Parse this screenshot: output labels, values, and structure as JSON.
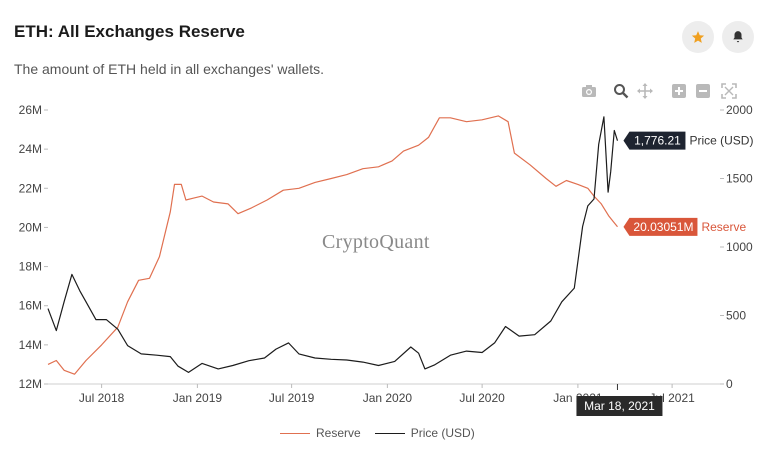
{
  "header": {
    "title": "ETH: All Exchanges Reserve",
    "subtitle": "The amount of ETH held in all exchanges' wallets.",
    "star_icon": "star-icon",
    "bell_icon": "bell-icon",
    "star_color": "#f0a020"
  },
  "toolbar": {
    "icons": [
      "camera-icon",
      "zoom-icon",
      "pan-icon",
      "zoom-in-icon",
      "zoom-out-icon",
      "reset-axes-icon"
    ]
  },
  "watermark": "CryptoQuant",
  "chart_data": {
    "type": "line",
    "x_ticks": [
      "Jul 2018",
      "Jan 2019",
      "Jul 2019",
      "Jan 2020",
      "Jul 2020",
      "Jan 2021",
      "Jul 2021"
    ],
    "y_left_ticks": [
      "12M",
      "14M",
      "16M",
      "18M",
      "20M",
      "22M",
      "24M",
      "26M"
    ],
    "y_left_range": [
      12,
      26
    ],
    "y_right_ticks": [
      "0",
      "500",
      "1000",
      "1500",
      "2000"
    ],
    "y_right_range": [
      0,
      2000
    ],
    "hover_date": "Mar 18, 2021",
    "price_label": "1,776.21",
    "price_label_suffix": "Price (USD)",
    "reserve_label": "20.03051M",
    "reserve_label_suffix": "Reserve",
    "colors": {
      "reserve": "#e07050",
      "price": "#1c1c1c",
      "price_tag": "#1e2430",
      "reserve_tag": "#d9563a"
    },
    "series": [
      {
        "name": "Reserve",
        "axis": "left",
        "points": [
          [
            "2018-03-20",
            13.0
          ],
          [
            "2018-04-05",
            13.2
          ],
          [
            "2018-04-20",
            12.7
          ],
          [
            "2018-05-10",
            12.5
          ],
          [
            "2018-06-01",
            13.2
          ],
          [
            "2018-07-01",
            14.0
          ],
          [
            "2018-08-01",
            14.9
          ],
          [
            "2018-08-20",
            16.2
          ],
          [
            "2018-09-10",
            17.3
          ],
          [
            "2018-10-01",
            17.4
          ],
          [
            "2018-10-20",
            18.5
          ],
          [
            "2018-11-10",
            20.8
          ],
          [
            "2018-11-18",
            22.2
          ],
          [
            "2018-12-01",
            22.2
          ],
          [
            "2018-12-10",
            21.4
          ],
          [
            "2018-12-25",
            21.5
          ],
          [
            "2019-01-10",
            21.6
          ],
          [
            "2019-02-01",
            21.3
          ],
          [
            "2019-03-01",
            21.2
          ],
          [
            "2019-03-20",
            20.7
          ],
          [
            "2019-04-15",
            21.0
          ],
          [
            "2019-05-15",
            21.4
          ],
          [
            "2019-06-15",
            21.9
          ],
          [
            "2019-07-15",
            22.0
          ],
          [
            "2019-08-15",
            22.3
          ],
          [
            "2019-09-15",
            22.5
          ],
          [
            "2019-10-15",
            22.7
          ],
          [
            "2019-11-15",
            23.0
          ],
          [
            "2019-12-15",
            23.1
          ],
          [
            "2020-01-10",
            23.4
          ],
          [
            "2020-02-01",
            23.9
          ],
          [
            "2020-03-01",
            24.2
          ],
          [
            "2020-03-20",
            24.6
          ],
          [
            "2020-04-10",
            25.6
          ],
          [
            "2020-05-01",
            25.6
          ],
          [
            "2020-06-01",
            25.4
          ],
          [
            "2020-07-01",
            25.5
          ],
          [
            "2020-08-01",
            25.7
          ],
          [
            "2020-08-20",
            25.4
          ],
          [
            "2020-09-01",
            23.8
          ],
          [
            "2020-10-01",
            23.2
          ],
          [
            "2020-11-01",
            22.5
          ],
          [
            "2020-11-20",
            22.1
          ],
          [
            "2020-12-10",
            22.4
          ],
          [
            "2021-01-01",
            22.2
          ],
          [
            "2021-01-20",
            22.0
          ],
          [
            "2021-02-01",
            21.6
          ],
          [
            "2021-02-15",
            21.2
          ],
          [
            "2021-03-01",
            20.6
          ],
          [
            "2021-03-10",
            20.3
          ],
          [
            "2021-03-18",
            20.0305
          ]
        ]
      },
      {
        "name": "Price (USD)",
        "axis": "right",
        "points": [
          [
            "2018-03-20",
            550
          ],
          [
            "2018-04-05",
            390
          ],
          [
            "2018-04-20",
            600
          ],
          [
            "2018-05-05",
            800
          ],
          [
            "2018-05-20",
            680
          ],
          [
            "2018-06-01",
            600
          ],
          [
            "2018-06-20",
            470
          ],
          [
            "2018-07-10",
            470
          ],
          [
            "2018-08-01",
            400
          ],
          [
            "2018-08-20",
            280
          ],
          [
            "2018-09-15",
            220
          ],
          [
            "2018-10-15",
            210
          ],
          [
            "2018-11-10",
            200
          ],
          [
            "2018-11-25",
            130
          ],
          [
            "2018-12-15",
            85
          ],
          [
            "2019-01-10",
            150
          ],
          [
            "2019-02-10",
            110
          ],
          [
            "2019-03-10",
            135
          ],
          [
            "2019-04-10",
            170
          ],
          [
            "2019-05-10",
            190
          ],
          [
            "2019-06-01",
            255
          ],
          [
            "2019-06-25",
            300
          ],
          [
            "2019-07-15",
            220
          ],
          [
            "2019-08-15",
            190
          ],
          [
            "2019-09-15",
            180
          ],
          [
            "2019-10-15",
            175
          ],
          [
            "2019-11-15",
            160
          ],
          [
            "2019-12-15",
            135
          ],
          [
            "2020-01-15",
            165
          ],
          [
            "2020-02-15",
            270
          ],
          [
            "2020-03-01",
            225
          ],
          [
            "2020-03-13",
            110
          ],
          [
            "2020-04-01",
            140
          ],
          [
            "2020-05-01",
            210
          ],
          [
            "2020-06-01",
            240
          ],
          [
            "2020-07-01",
            230
          ],
          [
            "2020-07-25",
            300
          ],
          [
            "2020-08-15",
            420
          ],
          [
            "2020-09-10",
            350
          ],
          [
            "2020-10-10",
            360
          ],
          [
            "2020-11-10",
            460
          ],
          [
            "2020-12-01",
            600
          ],
          [
            "2020-12-25",
            700
          ],
          [
            "2021-01-10",
            1150
          ],
          [
            "2021-01-20",
            1300
          ],
          [
            "2021-02-01",
            1350
          ],
          [
            "2021-02-10",
            1750
          ],
          [
            "2021-02-20",
            1950
          ],
          [
            "2021-02-28",
            1400
          ],
          [
            "2021-03-05",
            1550
          ],
          [
            "2021-03-12",
            1850
          ],
          [
            "2021-03-18",
            1776.21
          ]
        ]
      }
    ],
    "legend": "bottom"
  }
}
